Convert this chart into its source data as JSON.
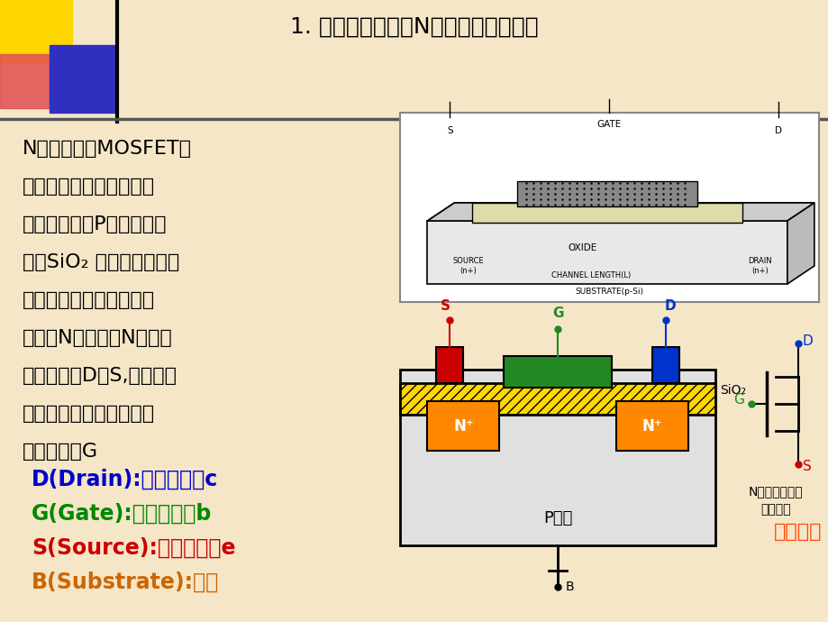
{
  "bg_color": "#f5e6c8",
  "title": "1. 结构和符号（以N沟道增强型为例）",
  "title_color": "#000000",
  "title_fontsize": 18,
  "header_colors": {
    "yellow": "#FFD700",
    "red": "#E05050",
    "blue": "#3030C0",
    "black": "#000000"
  },
  "body_text": [
    "N沟道增强型MOSFET拓",
    "扑结构左右对称，是在一",
    "块浓度较低的P型硅上生成",
    "一层SiO₂ 薄膜绝缘层，然",
    "后用光刻工艺扩散两个高",
    "掺杂的N型区，从N型区引",
    "出电极作为D和S,在绝缘层",
    "上镀一层金属铝并引出一",
    "个电极作为G"
  ],
  "body_fontsize": 16,
  "body_color": "#000000",
  "colored_lines": [
    {
      "text": "D(Drain):漏极，相当c",
      "color": "#0000CC"
    },
    {
      "text": "G(Gate):栅极，相当b",
      "color": "#008800"
    },
    {
      "text": "S(Source):源极，相当e",
      "color": "#CC0000"
    },
    {
      "text": "B(Substrate):衬底",
      "color": "#CC6600"
    }
  ],
  "colored_fontsize": 17,
  "note_text1": "N沟道箭头向里",
  "note_text2": "衬底断开",
  "note_color": "#000000",
  "animation_text": "结构动画",
  "animation_color": "#FF4400"
}
